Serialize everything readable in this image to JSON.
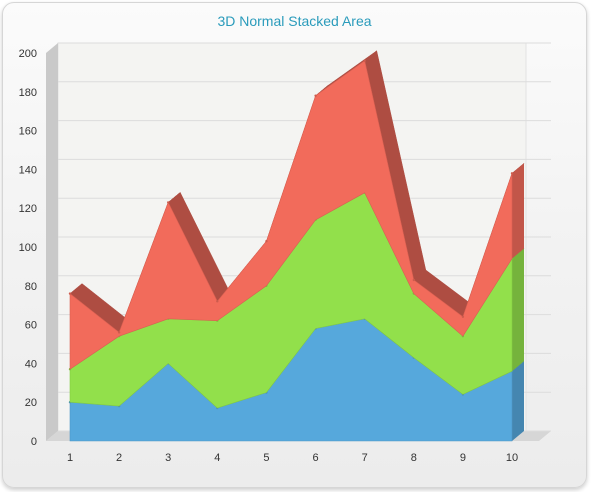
{
  "chart_data": {
    "type": "area",
    "stacked": true,
    "three_d": true,
    "title": "3D Normal Stacked Area",
    "categories": [
      "1",
      "2",
      "3",
      "4",
      "5",
      "6",
      "7",
      "8",
      "9",
      "10"
    ],
    "series": [
      {
        "values": [
          20,
          18,
          40,
          17,
          25,
          58,
          63,
          43,
          24,
          36
        ],
        "color": "#56a8dc"
      },
      {
        "values": [
          17,
          36,
          23,
          45,
          55,
          56,
          65,
          33,
          30,
          58
        ],
        "color": "#92e04b"
      },
      {
        "values": [
          39,
          2,
          60,
          10,
          23,
          64,
          68,
          7,
          10,
          44
        ],
        "color": "#f26b5b"
      }
    ],
    "ylim": [
      0,
      200
    ],
    "yticks": [
      0,
      20,
      40,
      60,
      80,
      100,
      120,
      140,
      160,
      180,
      200
    ],
    "grid": true
  }
}
